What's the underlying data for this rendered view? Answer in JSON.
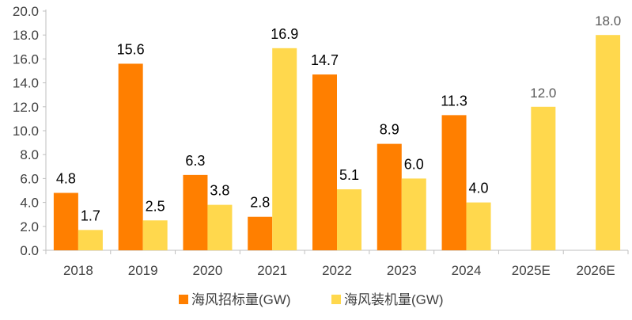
{
  "chart_data": {
    "type": "bar",
    "categories": [
      "2018",
      "2019",
      "2020",
      "2021",
      "2022",
      "2023",
      "2024",
      "2025E",
      "2026E"
    ],
    "series": [
      {
        "name": "海风招标量(GW)",
        "color": "#FF7F00",
        "values": [
          4.8,
          15.6,
          6.3,
          2.8,
          14.7,
          8.9,
          11.3,
          null,
          null
        ],
        "labels": [
          "4.8",
          "15.6",
          "6.3",
          "2.8",
          "14.7",
          "8.9",
          "11.3",
          null,
          null
        ]
      },
      {
        "name": "海风装机量(GW)",
        "color": "#FFD84D",
        "values": [
          1.7,
          2.5,
          3.8,
          16.9,
          5.1,
          6.0,
          4.0,
          12.0,
          18.0
        ],
        "labels": [
          "1.7",
          "2.5",
          "3.8",
          "16.9",
          "5.1",
          "6.0",
          "4.0",
          "12.0",
          "18.0"
        ]
      }
    ],
    "ylim": [
      0,
      20
    ],
    "yticks": [
      "0.0",
      "2.0",
      "4.0",
      "6.0",
      "8.0",
      "10.0",
      "12.0",
      "14.0",
      "16.0",
      "18.0",
      "20.0"
    ],
    "grid": false,
    "legend_position": "bottom-center"
  }
}
